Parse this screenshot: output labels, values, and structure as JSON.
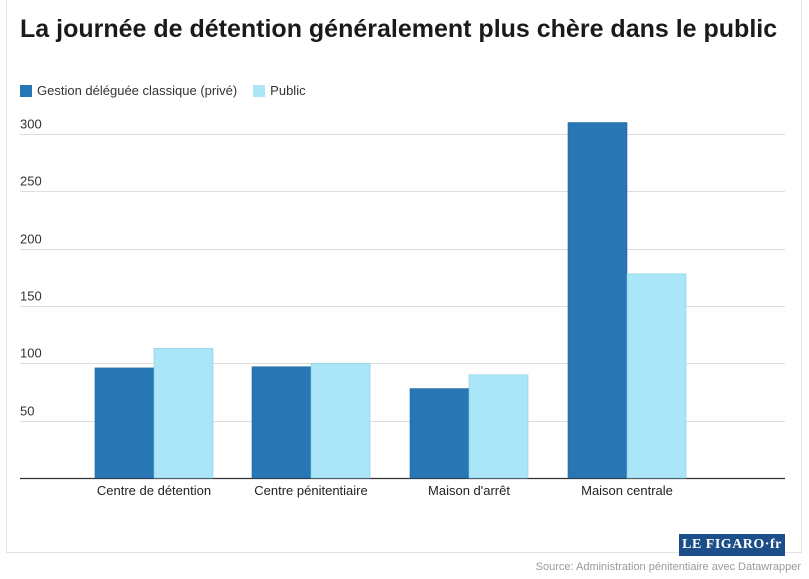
{
  "chart_data": {
    "type": "bar",
    "title": "La journée de détention généralement plus chère dans le public",
    "categories": [
      "Centre de détention",
      "Centre pénitentiaire",
      "Maison d'arrêt",
      "Maison centrale"
    ],
    "series": [
      {
        "name": "Gestion déléguée classique (privé)",
        "color": "#2877b4",
        "values": [
          96,
          97,
          78,
          310
        ]
      },
      {
        "name": "Public",
        "color": "#aae6f8",
        "values": [
          113,
          100,
          90,
          178
        ]
      }
    ],
    "yticks": [
      50,
      100,
      150,
      200,
      250,
      300
    ],
    "ylim": [
      0,
      310
    ],
    "grid": true,
    "legend_position": "top-left"
  },
  "logo": {
    "text": "LE FIGARO·fr"
  },
  "source": "Source: Administration pénitentiaire avec Datawrapper"
}
